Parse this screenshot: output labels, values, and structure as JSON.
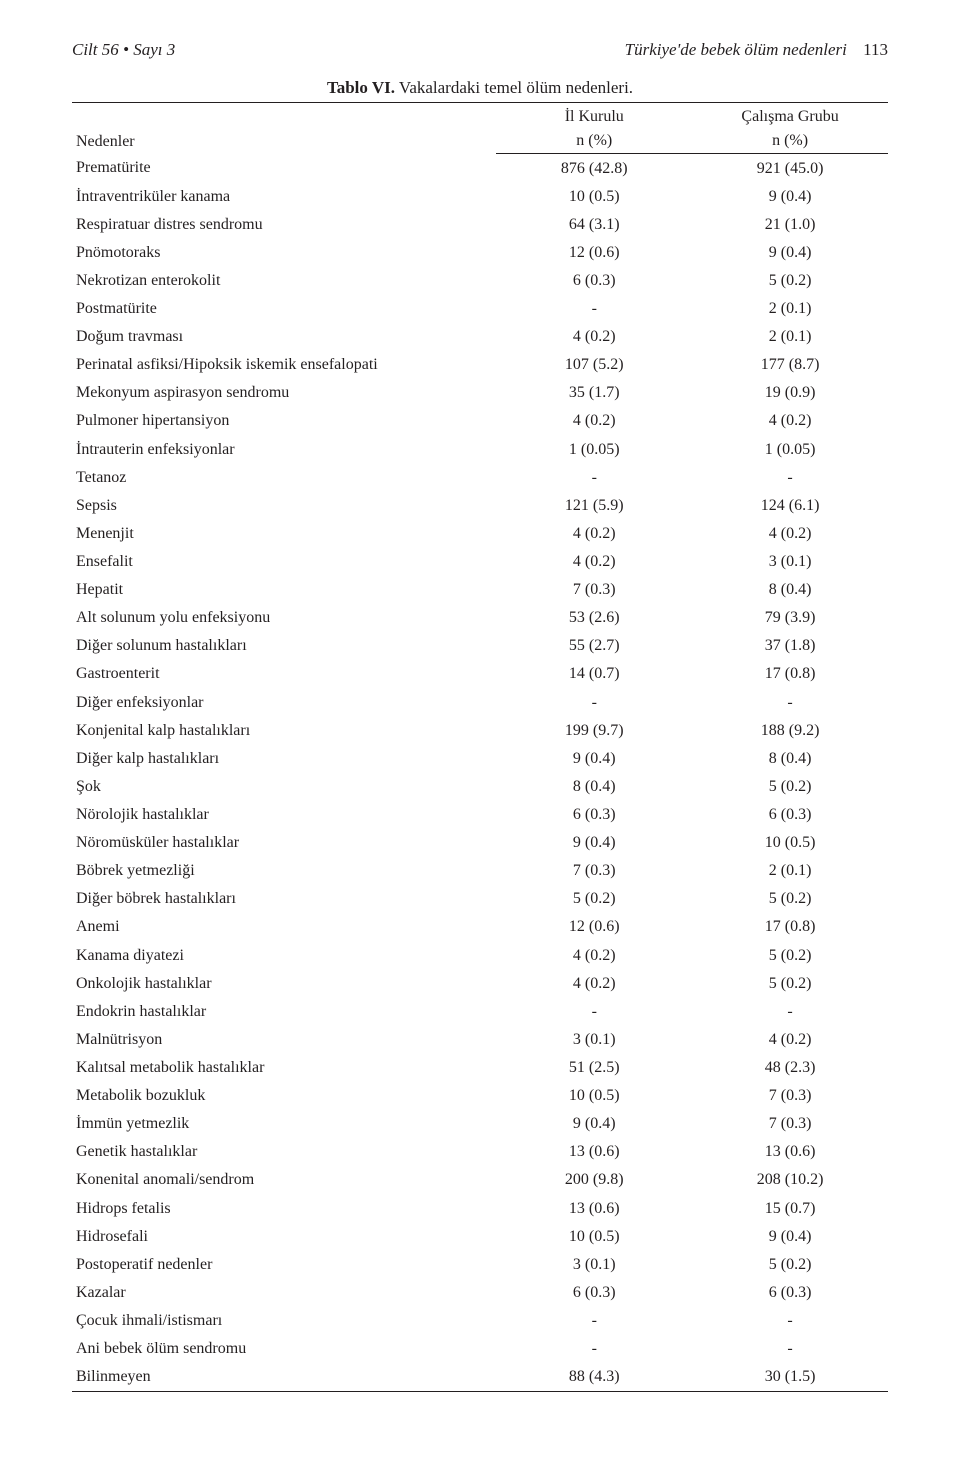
{
  "header": {
    "left": "Cilt 56 • Sayı 3",
    "right_title": "Türkiye'de bebek ölüm nedenleri",
    "page_no": "113"
  },
  "table": {
    "caption_label": "Tablo VI.",
    "caption_text": " Vakalardaki temel ölüm nedenleri.",
    "head": {
      "col0": "Nedenler",
      "col1_top": "İl Kurulu",
      "col1_bot": "n (%)",
      "col2_top": "Çalışma Grubu",
      "col2_bot": "n (%)"
    },
    "rows": [
      {
        "label": "Prematürite",
        "c1": "876 (42.8)",
        "c2": "921 (45.0)"
      },
      {
        "label": "İntraventriküler kanama",
        "c1": "10 (0.5)",
        "c2": "9 (0.4)"
      },
      {
        "label": "Respiratuar distres sendromu",
        "c1": "64 (3.1)",
        "c2": "21 (1.0)"
      },
      {
        "label": "Pnömotoraks",
        "c1": "12 (0.6)",
        "c2": "9 (0.4)"
      },
      {
        "label": "Nekrotizan enterokolit",
        "c1": "6 (0.3)",
        "c2": "5 (0.2)"
      },
      {
        "label": "Postmatürite",
        "c1": "-",
        "c2": "2 (0.1)"
      },
      {
        "label": "Doğum travması",
        "c1": "4 (0.2)",
        "c2": "2 (0.1)"
      },
      {
        "label": "Perinatal asfiksi/Hipoksik iskemik ensefalopati",
        "c1": "107 (5.2)",
        "c2": "177 (8.7)"
      },
      {
        "label": "Mekonyum aspirasyon sendromu",
        "c1": "35 (1.7)",
        "c2": "19 (0.9)"
      },
      {
        "label": "Pulmoner hipertansiyon",
        "c1": "4 (0.2)",
        "c2": "4 (0.2)"
      },
      {
        "label": "İntrauterin enfeksiyonlar",
        "c1": "1 (0.05)",
        "c2": "1 (0.05)"
      },
      {
        "label": "Tetanoz",
        "c1": "-",
        "c2": "-"
      },
      {
        "label": "Sepsis",
        "c1": "121 (5.9)",
        "c2": "124 (6.1)"
      },
      {
        "label": "Menenjit",
        "c1": "4 (0.2)",
        "c2": "4 (0.2)"
      },
      {
        "label": "Ensefalit",
        "c1": "4 (0.2)",
        "c2": "3 (0.1)"
      },
      {
        "label": "Hepatit",
        "c1": "7 (0.3)",
        "c2": "8 (0.4)"
      },
      {
        "label": "Alt solunum yolu enfeksiyonu",
        "c1": "53 (2.6)",
        "c2": "79 (3.9)"
      },
      {
        "label": "Diğer solunum hastalıkları",
        "c1": "55 (2.7)",
        "c2": "37 (1.8)"
      },
      {
        "label": "Gastroenterit",
        "c1": "14 (0.7)",
        "c2": "17 (0.8)"
      },
      {
        "label": "Diğer enfeksiyonlar",
        "c1": "-",
        "c2": "-"
      },
      {
        "label": "Konjenital kalp hastalıkları",
        "c1": "199 (9.7)",
        "c2": "188 (9.2)"
      },
      {
        "label": "Diğer kalp hastalıkları",
        "c1": "9 (0.4)",
        "c2": "8 (0.4)"
      },
      {
        "label": "Şok",
        "c1": "8 (0.4)",
        "c2": "5 (0.2)"
      },
      {
        "label": "Nörolojik hastalıklar",
        "c1": "6 (0.3)",
        "c2": "6 (0.3)"
      },
      {
        "label": "Nöromüsküler hastalıklar",
        "c1": "9 (0.4)",
        "c2": "10 (0.5)"
      },
      {
        "label": "Böbrek yetmezliği",
        "c1": "7 (0.3)",
        "c2": "2 (0.1)"
      },
      {
        "label": "Diğer böbrek hastalıkları",
        "c1": "5 (0.2)",
        "c2": "5 (0.2)"
      },
      {
        "label": "Anemi",
        "c1": "12 (0.6)",
        "c2": "17 (0.8)"
      },
      {
        "label": "Kanama diyatezi",
        "c1": "4 (0.2)",
        "c2": "5 (0.2)"
      },
      {
        "label": "Onkolojik hastalıklar",
        "c1": "4 (0.2)",
        "c2": "5 (0.2)"
      },
      {
        "label": "Endokrin hastalıklar",
        "c1": "-",
        "c2": "-"
      },
      {
        "label": "Malnütrisyon",
        "c1": "3 (0.1)",
        "c2": "4 (0.2)"
      },
      {
        "label": "Kalıtsal metabolik hastalıklar",
        "c1": "51 (2.5)",
        "c2": "48 (2.3)"
      },
      {
        "label": "Metabolik bozukluk",
        "c1": "10 (0.5)",
        "c2": "7 (0.3)"
      },
      {
        "label": "İmmün yetmezlik",
        "c1": "9 (0.4)",
        "c2": "7 (0.3)"
      },
      {
        "label": "Genetik hastalıklar",
        "c1": "13 (0.6)",
        "c2": "13 (0.6)"
      },
      {
        "label": "Konenital anomali/sendrom",
        "c1": "200 (9.8)",
        "c2": "208 (10.2)"
      },
      {
        "label": "Hidrops fetalis",
        "c1": "13 (0.6)",
        "c2": "15 (0.7)"
      },
      {
        "label": "Hidrosefali",
        "c1": "10 (0.5)",
        "c2": "9 (0.4)"
      },
      {
        "label": "Postoperatif nedenler",
        "c1": "3 (0.1)",
        "c2": "5 (0.2)"
      },
      {
        "label": "Kazalar",
        "c1": "6 (0.3)",
        "c2": "6 (0.3)"
      },
      {
        "label": "Çocuk ihmali/istismarı",
        "c1": "-",
        "c2": "-"
      },
      {
        "label": "Ani bebek ölüm sendromu",
        "c1": "-",
        "c2": "-"
      },
      {
        "label": "Bilinmeyen",
        "c1": "88 (4.3)",
        "c2": "30 (1.5)"
      }
    ]
  }
}
